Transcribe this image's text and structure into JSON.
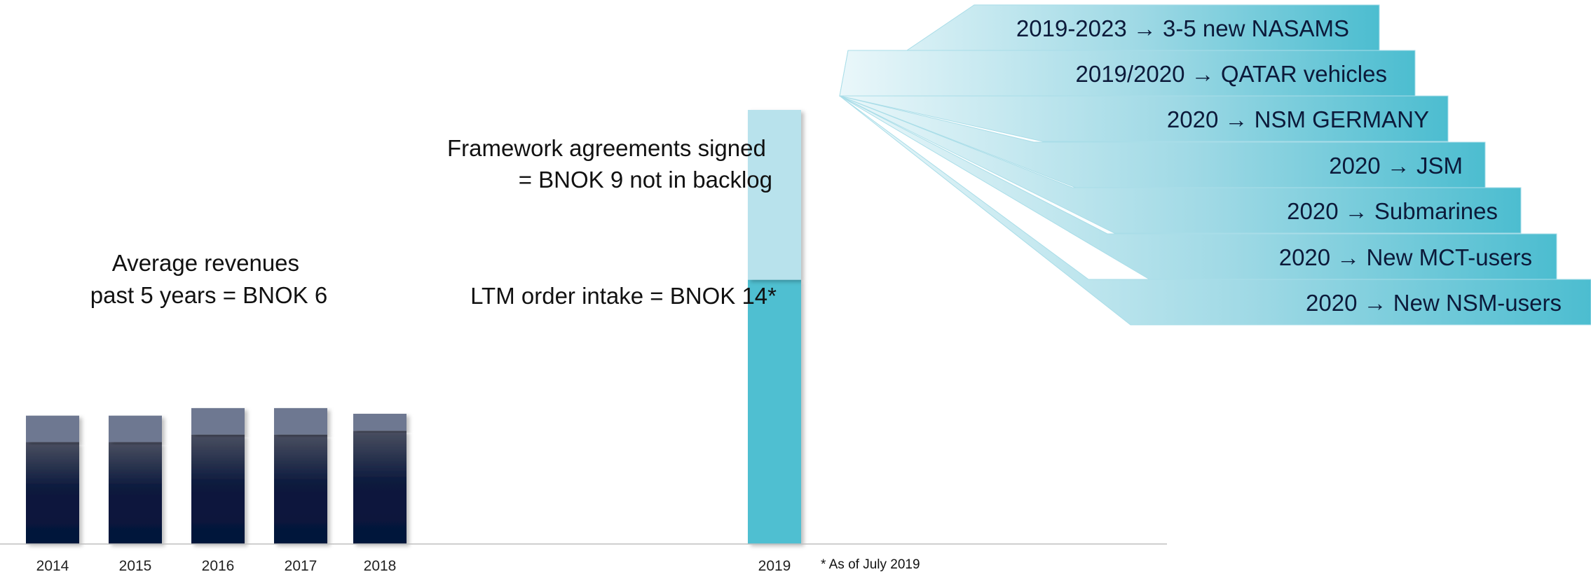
{
  "chart_data": {
    "type": "bar",
    "categories": [
      "2014",
      "2015",
      "2016",
      "2017",
      "2018",
      "2019"
    ],
    "series": [
      {
        "values": [
          5.4,
          5.4,
          5.8,
          5.8,
          6.0,
          null
        ]
      },
      {
        "values": [
          1.4,
          1.4,
          1.4,
          1.4,
          0.9,
          null
        ]
      },
      {
        "values": [
          null,
          null,
          null,
          null,
          null,
          14
        ]
      },
      {
        "values": [
          null,
          null,
          null,
          null,
          null,
          9
        ]
      }
    ],
    "ylim": [
      0,
      24
    ],
    "grid": false,
    "annotations": {
      "average": [
        "Average revenues",
        "past 5 years = BNOK 6"
      ],
      "framework": [
        "Framework agreements signed",
        "= BNOK 9 not in backlog"
      ],
      "ltm": "LTM order intake = BNOK 14*",
      "footnote": "* As of July 2019"
    },
    "pipeline": [
      "2019-2023 → 3-5 new NASAMS",
      "2019/2020 → QATAR vehicles",
      "2020 → NSM GERMANY",
      "2020 → JSM",
      "2020 → Submarines",
      "2020 → New MCT-users",
      "2020 → New NSM-users"
    ]
  },
  "colors": {
    "revenue_base_dark": "#04133a",
    "revenue_top": "#6e7891",
    "order_intake": "#4fbfd1",
    "framework": "#b8e2ec",
    "axis": "#bfbfbf"
  }
}
